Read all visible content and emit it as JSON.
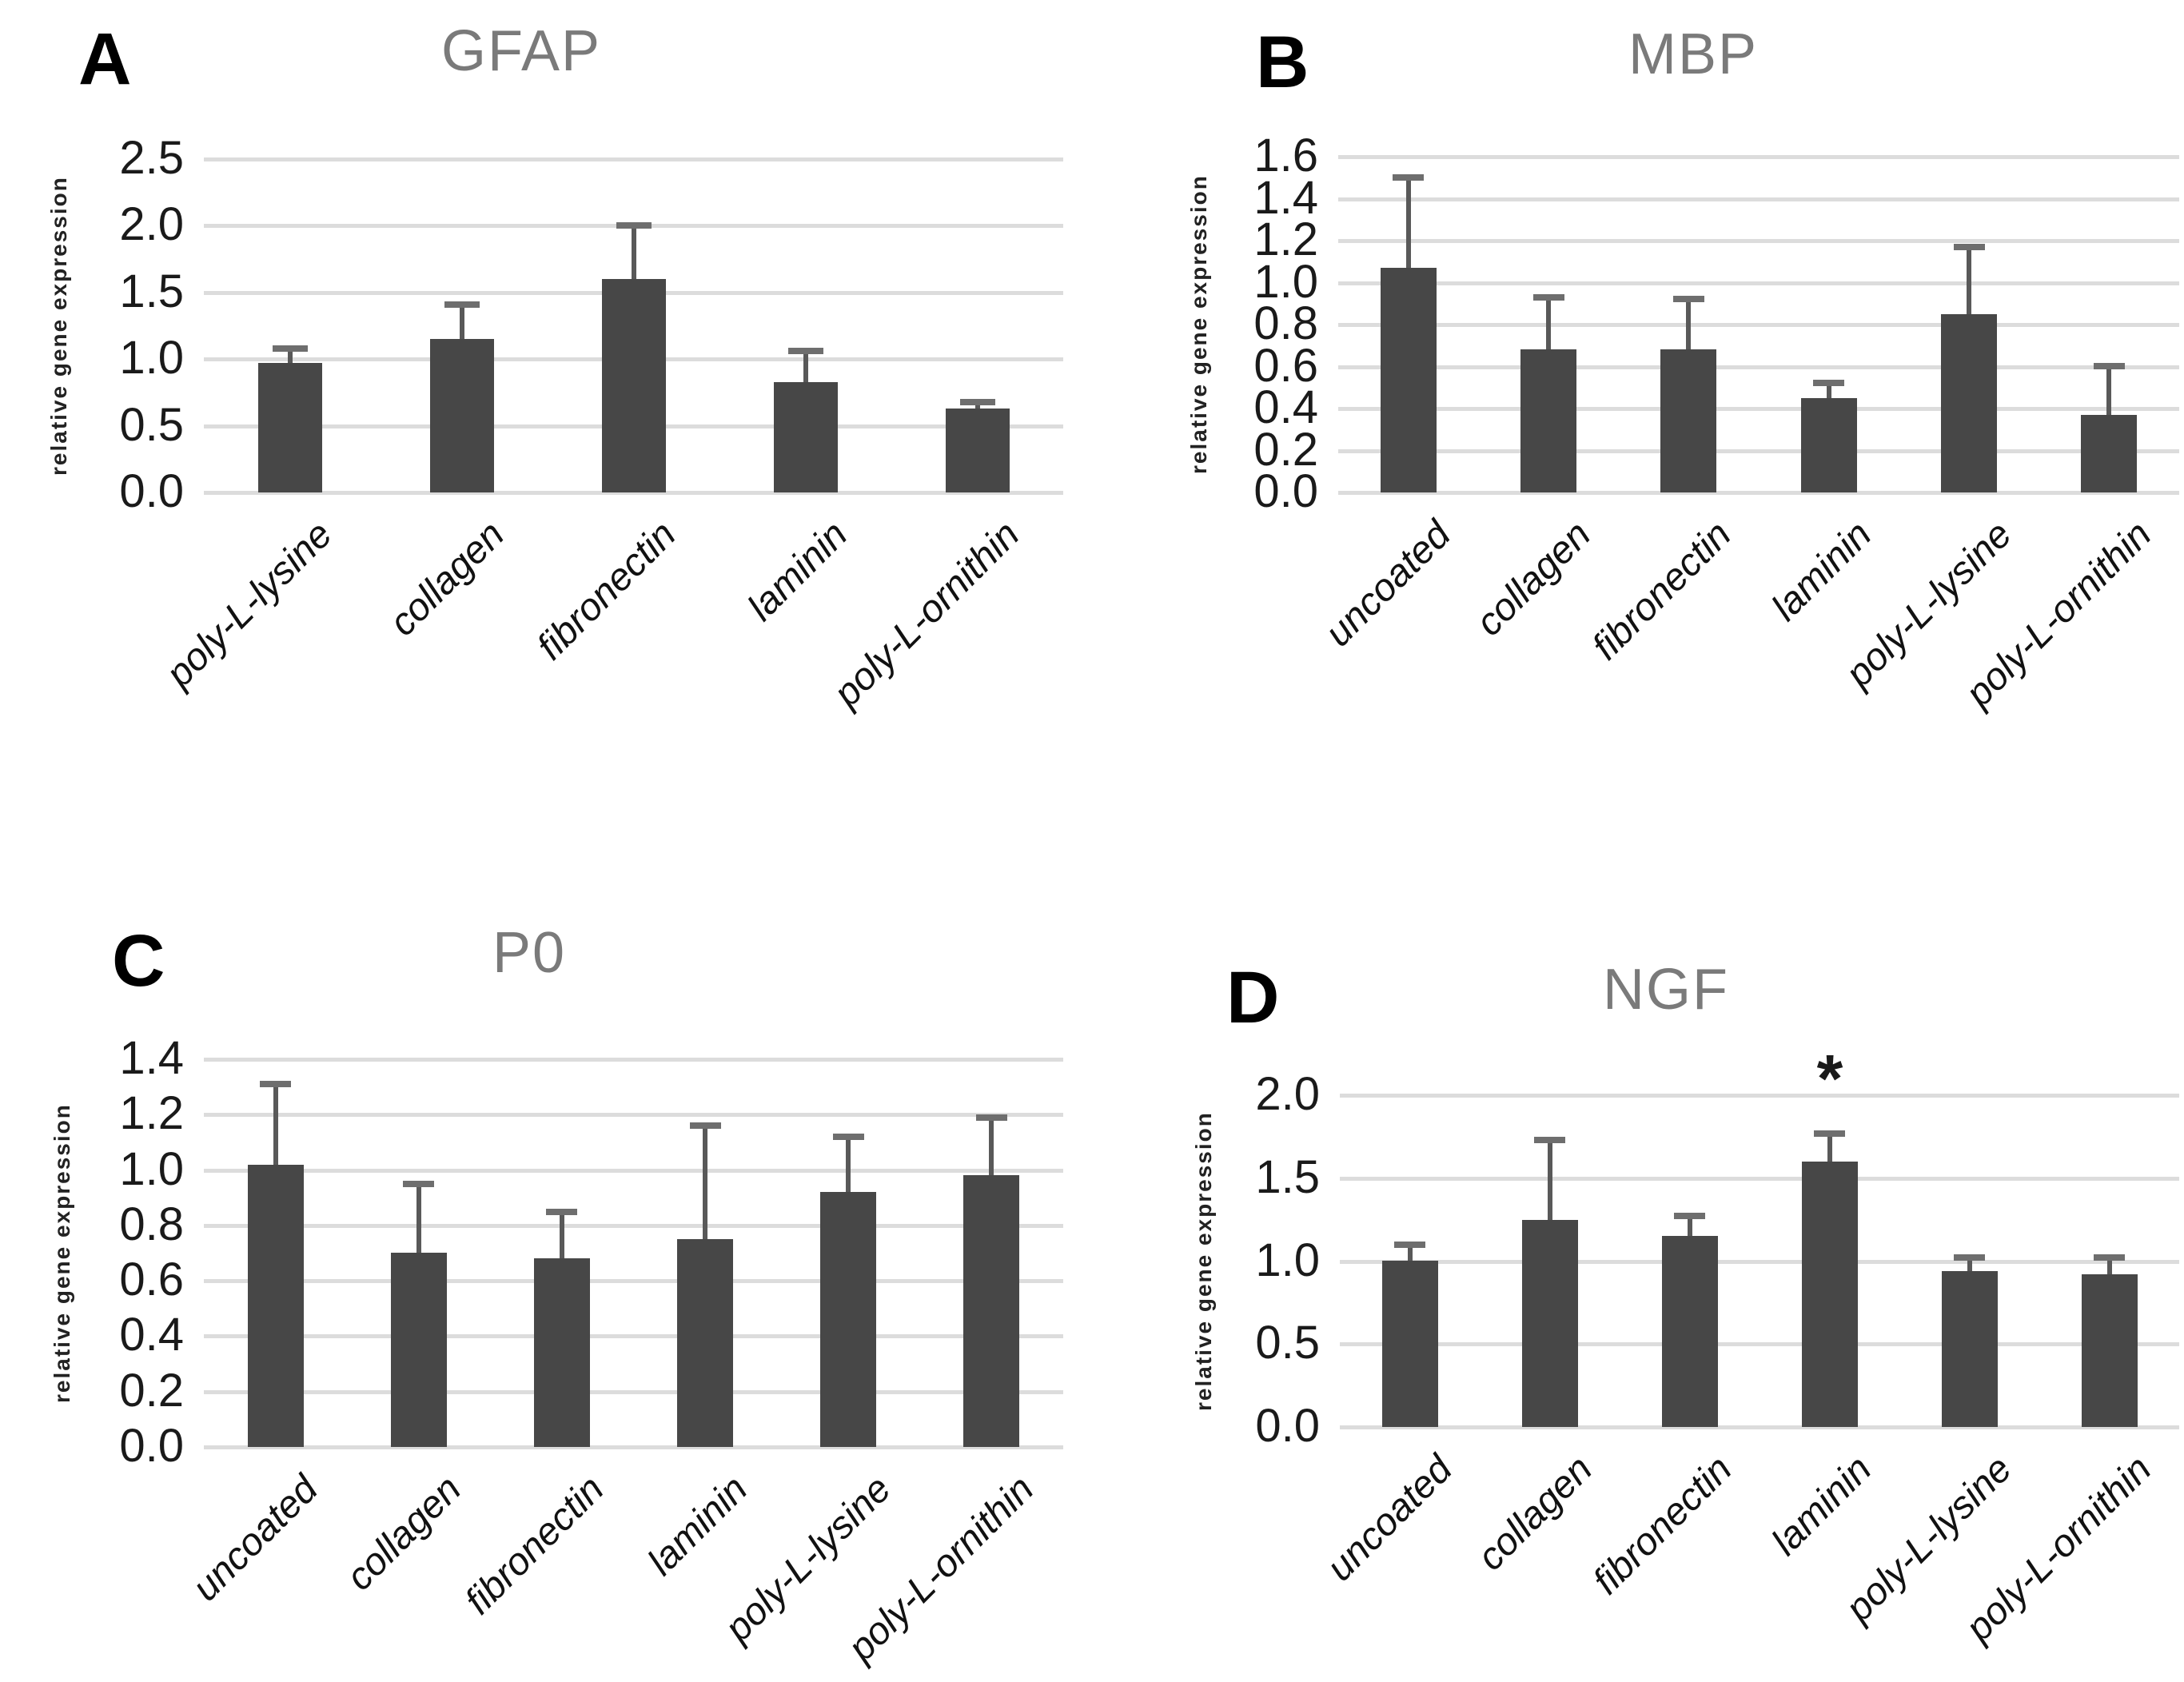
{
  "figure": {
    "y_axis_label": "relative gene expression",
    "bar_color": "#474747",
    "error_line_color": "#595959",
    "error_cap_color": "#6e6e6e",
    "grid_color": "#dcdcdc",
    "title_color": "#7a7a7a"
  },
  "chart_data": [
    {
      "panel": "A",
      "type": "bar",
      "title": "GFAP",
      "ylabel": "relative gene expression",
      "xlabel": "",
      "ylim": [
        0,
        2.5
      ],
      "yticks": [
        "0.0",
        "0.5",
        "1.0",
        "1.5",
        "2.0",
        "2.5"
      ],
      "grid": true,
      "legend": "none",
      "categories": [
        "poly-L-lysine",
        "collagen",
        "fibronectin",
        "laminin",
        "poly-L-ornithin"
      ],
      "values": [
        0.97,
        1.15,
        1.6,
        0.83,
        0.63
      ],
      "errors_up": [
        0.11,
        0.26,
        0.4,
        0.23,
        0.05
      ],
      "annotations": []
    },
    {
      "panel": "B",
      "type": "bar",
      "title": "MBP",
      "ylabel": "relative gene expression",
      "xlabel": "",
      "ylim": [
        0,
        1.6
      ],
      "yticks": [
        "0.0",
        "0.2",
        "0.4",
        "0.6",
        "0.8",
        "1.0",
        "1.2",
        "1.4",
        "1.6"
      ],
      "grid": true,
      "legend": "none",
      "categories": [
        "uncoated",
        "collagen",
        "fibronectin",
        "laminin",
        "poly-L-lysine",
        "poly-L-ornithin"
      ],
      "values": [
        1.07,
        0.68,
        0.68,
        0.45,
        0.85,
        0.37
      ],
      "errors_up": [
        0.43,
        0.25,
        0.24,
        0.07,
        0.32,
        0.23
      ],
      "annotations": []
    },
    {
      "panel": "C",
      "type": "bar",
      "title": "P0",
      "ylabel": "relative gene expression",
      "xlabel": "",
      "ylim": [
        0,
        1.4
      ],
      "yticks": [
        "0.0",
        "0.2",
        "0.4",
        "0.6",
        "0.8",
        "1.0",
        "1.2",
        "1.4"
      ],
      "grid": true,
      "legend": "none",
      "categories": [
        "uncoated",
        "collagen",
        "fibronectin",
        "laminin",
        "poly-L-lysine",
        "poly-L-ornithin"
      ],
      "values": [
        1.02,
        0.7,
        0.68,
        0.75,
        0.92,
        0.98
      ],
      "errors_up": [
        0.29,
        0.25,
        0.17,
        0.41,
        0.2,
        0.21
      ],
      "annotations": []
    },
    {
      "panel": "D",
      "type": "bar",
      "title": "NGF",
      "ylabel": "relative gene expression",
      "xlabel": "",
      "ylim": [
        0,
        2.0
      ],
      "yticks": [
        "0.0",
        "0.5",
        "1.0",
        "1.5",
        "2.0"
      ],
      "grid": true,
      "legend": "none",
      "categories": [
        "uncoated",
        "collagen",
        "fibronectin",
        "laminin",
        "poly-L-lysine",
        "poly-L-ornithin"
      ],
      "values": [
        1.0,
        1.25,
        1.15,
        1.6,
        0.94,
        0.92
      ],
      "errors_up": [
        0.1,
        0.48,
        0.12,
        0.17,
        0.08,
        0.1
      ],
      "annotations": [
        {
          "category": "laminin",
          "category_index": 3,
          "text": "*",
          "y": 2.1
        }
      ]
    }
  ]
}
